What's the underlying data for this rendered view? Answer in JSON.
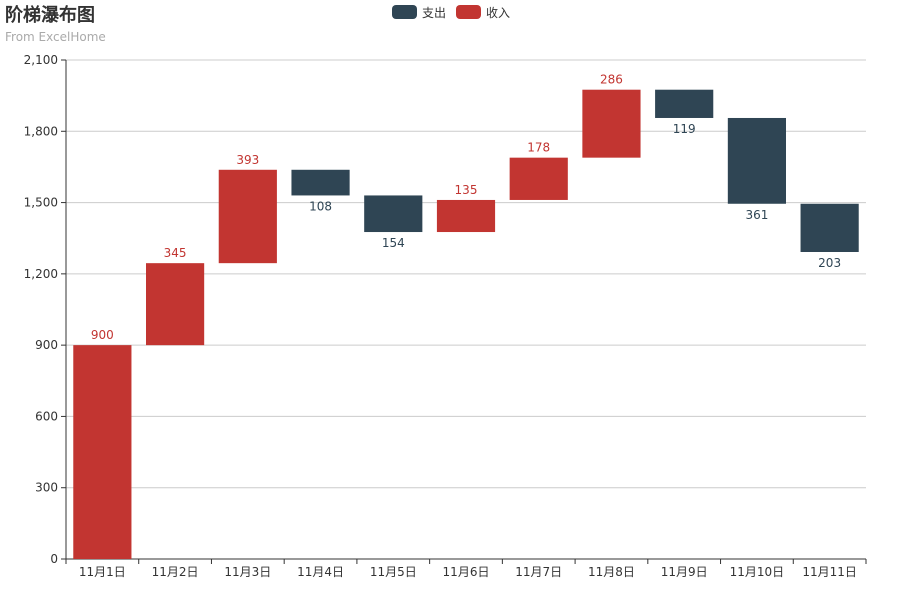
{
  "title": "阶梯瀑布图",
  "subtitle": "From ExcelHome",
  "legend": [
    {
      "name": "支出",
      "color": "#2f4554"
    },
    {
      "name": "收入",
      "color": "#c23531"
    }
  ],
  "chart_data": {
    "type": "bar",
    "stacked": true,
    "categories": [
      "11月1日",
      "11月2日",
      "11月3日",
      "11月4日",
      "11月5日",
      "11月6日",
      "11月7日",
      "11月8日",
      "11月9日",
      "11月10日",
      "11月11日"
    ],
    "series": [
      {
        "name": "支出",
        "color": "#2f4554",
        "values": [
          null,
          null,
          null,
          108,
          154,
          null,
          null,
          null,
          119,
          361,
          203
        ],
        "label_position": "bottom"
      },
      {
        "name": "收入",
        "color": "#c23531",
        "values": [
          900,
          345,
          393,
          null,
          null,
          135,
          178,
          286,
          null,
          null,
          null
        ],
        "label_position": "top"
      }
    ],
    "ylim": [
      0,
      2100
    ],
    "yticks": [
      0,
      300,
      600,
      900,
      1200,
      1500,
      1800,
      2100
    ],
    "ytick_labels": [
      "0",
      "300",
      "600",
      "900",
      "1,200",
      "1,500",
      "1,800",
      "2,100"
    ],
    "grid": true,
    "legend_position": "top-center"
  }
}
